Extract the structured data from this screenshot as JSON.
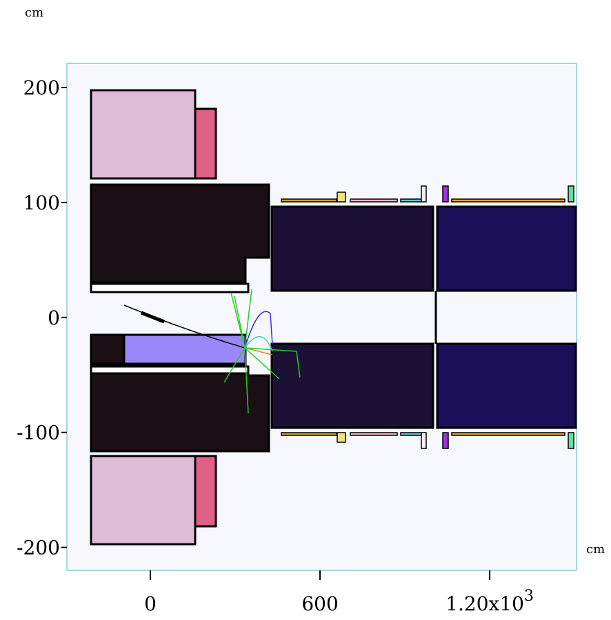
{
  "chart_data": {
    "type": "geometry",
    "xlabel": "cm",
    "ylabel": "cm",
    "xlim": [
      -295,
      1507
    ],
    "ylim": [
      -220,
      221
    ],
    "xticks": [
      0,
      600,
      {
        "value": 1200,
        "label": "1.20x10",
        "exponent": "3"
      }
    ],
    "yticks": [
      200,
      100,
      0,
      -100,
      -200
    ]
  }
}
